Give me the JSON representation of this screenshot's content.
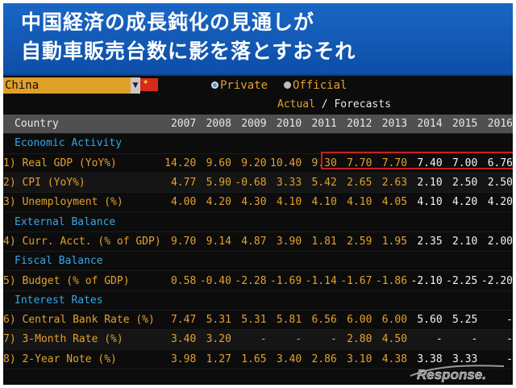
{
  "slide": {
    "title_line1": "中国経済の成長鈍化の見通しが",
    "title_line2": "自動車販売台数に影を落とすおそれ"
  },
  "terminal": {
    "country": "China",
    "radio_private": "Private",
    "radio_official": "Official",
    "actual_label": "Actual",
    "separator": "/",
    "forecasts_label": "Forecasts",
    "columns": [
      "Country",
      "2007",
      "2008",
      "2009",
      "2010",
      "2011",
      "2012",
      "2013",
      "2014",
      "2015",
      "2016"
    ],
    "rows": [
      {
        "type": "section",
        "label": "Economic Activity"
      },
      {
        "type": "data",
        "label": "1) Real GDP (YoY%)",
        "values": [
          "14.20",
          "9.60",
          "9.20",
          "10.40",
          "9.30",
          "7.70",
          "7.70",
          "7.40",
          "7.00",
          "6.76"
        ]
      },
      {
        "type": "data",
        "label": "2) CPI (YoY%)",
        "values": [
          "4.77",
          "5.90",
          "-0.68",
          "3.33",
          "5.42",
          "2.65",
          "2.63",
          "2.10",
          "2.50",
          "2.50"
        ]
      },
      {
        "type": "data",
        "label": "3) Unemployment (%)",
        "values": [
          "4.00",
          "4.20",
          "4.30",
          "4.10",
          "4.10",
          "4.10",
          "4.05",
          "4.10",
          "4.20",
          "4.20"
        ]
      },
      {
        "type": "section",
        "label": "External Balance"
      },
      {
        "type": "data",
        "label": "4) Curr. Acct. (% of GDP)",
        "values": [
          "9.70",
          "9.14",
          "4.87",
          "3.90",
          "1.81",
          "2.59",
          "1.95",
          "2.35",
          "2.10",
          "2.00"
        ]
      },
      {
        "type": "section",
        "label": "Fiscal Balance"
      },
      {
        "type": "data",
        "label": "5) Budget (% of GDP)",
        "values": [
          "0.58",
          "-0.40",
          "-2.28",
          "-1.69",
          "-1.14",
          "-1.67",
          "-1.86",
          "-2.10",
          "-2.25",
          "-2.20"
        ]
      },
      {
        "type": "section",
        "label": "Interest Rates"
      },
      {
        "type": "data",
        "label": "6) Central Bank Rate (%)",
        "values": [
          "7.47",
          "5.31",
          "5.31",
          "5.81",
          "6.56",
          "6.00",
          "6.00",
          "5.60",
          "5.25",
          "-"
        ]
      },
      {
        "type": "data",
        "label": "7) 3-Month Rate (%)",
        "values": [
          "3.40",
          "3.20",
          "-",
          "-",
          "-",
          "2.80",
          "4.50",
          "-",
          "-",
          "-"
        ]
      },
      {
        "type": "data",
        "label": "8) 2-Year Note (%)",
        "values": [
          "3.98",
          "1.27",
          "1.65",
          "3.40",
          "2.86",
          "3.10",
          "4.38",
          "3.38",
          "3.33",
          "-"
        ]
      }
    ],
    "forecast_start_index": 7
  },
  "watermark": {
    "text": "Response."
  },
  "colors": {
    "header_blue": "#0d4ea8",
    "amber": "#e4a12c",
    "section_blue": "#33a8e6",
    "highlight_red": "#cc1f1f"
  }
}
